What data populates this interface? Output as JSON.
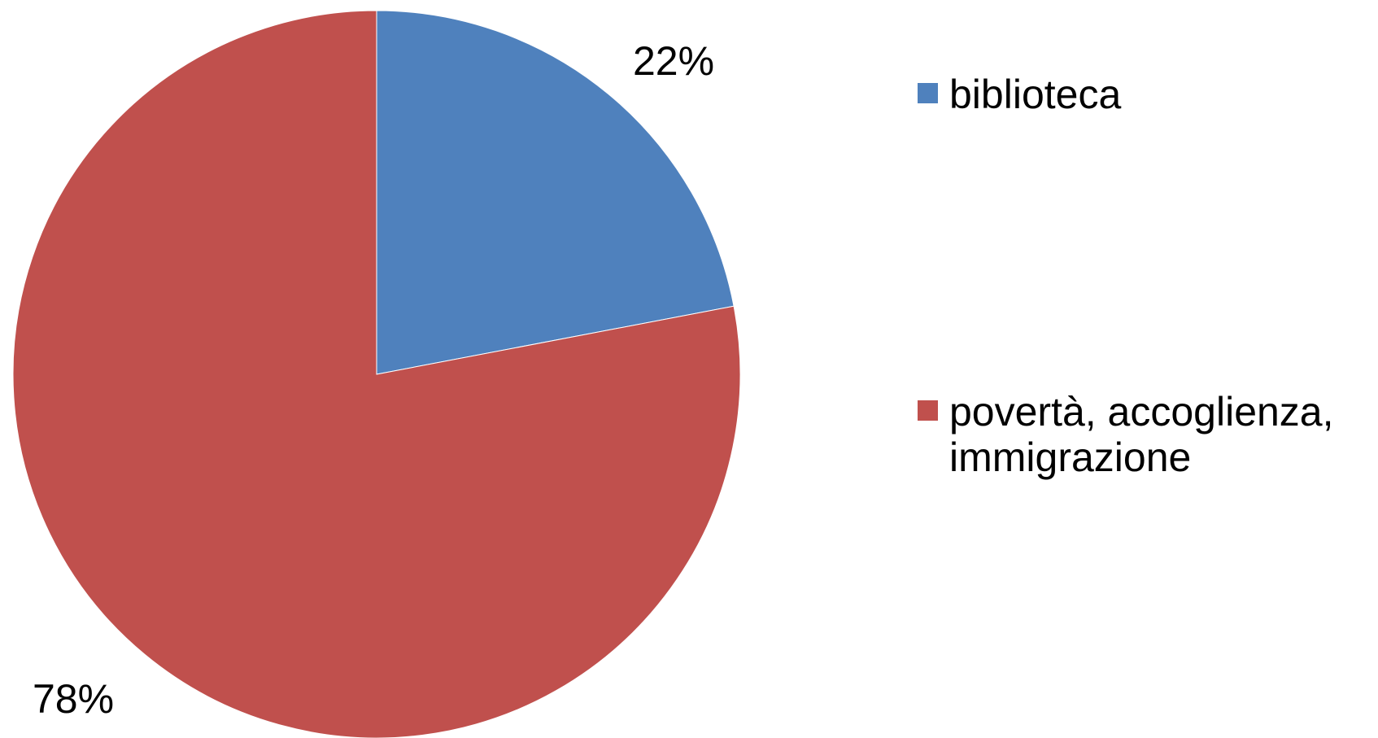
{
  "chart_data": {
    "type": "pie",
    "title": "",
    "slices": [
      {
        "label": "biblioteca",
        "value": 22,
        "display": "22%",
        "color": "#4F81BD"
      },
      {
        "label": "povertà, accoglienza, immigrazione",
        "value": 78,
        "display": "78%",
        "color": "#C0504D"
      }
    ],
    "start_angle": "12 o'clock",
    "direction": "clockwise",
    "legend_position": "right"
  }
}
